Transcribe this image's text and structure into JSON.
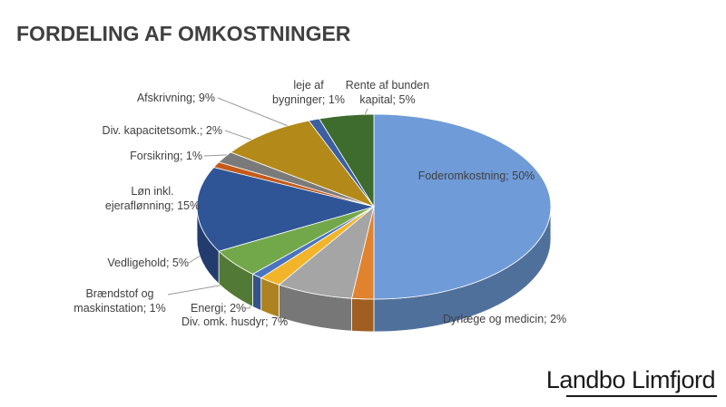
{
  "chart_data": {
    "type": "pie3d",
    "title": "FORDELING AF OMKOSTNINGER",
    "values": [
      50,
      2,
      7,
      2,
      1,
      5,
      15,
      1,
      2,
      9,
      1,
      5
    ],
    "value_labels": [
      "Foderomkostning; 50%",
      "Dyrlæge og medicin; 2%",
      "Div. omk. husdyr; 7%",
      "Energi; 2%",
      "Brændstof og maskinstation; 1%",
      "Vedligehold; 5%",
      "Løn inkl. ejeraflønning; 15%",
      "Forsikring; 1%",
      "Div. kapacitetsomk.; 2%",
      "Afskrivning; 9%",
      "leje af bygninger; 1%",
      "Rente af bunden kapital; 5%"
    ],
    "colors": [
      "#6f9bd8",
      "#e0822e",
      "#a5a5a5",
      "#f2b52a",
      "#4a73c0",
      "#72a84a",
      "#2f5597",
      "#c55a1a",
      "#7a7a7a",
      "#b38a1a",
      "#3b5fa0",
      "#3e6b2e"
    ]
  },
  "logo": "Landbo Limfjord"
}
